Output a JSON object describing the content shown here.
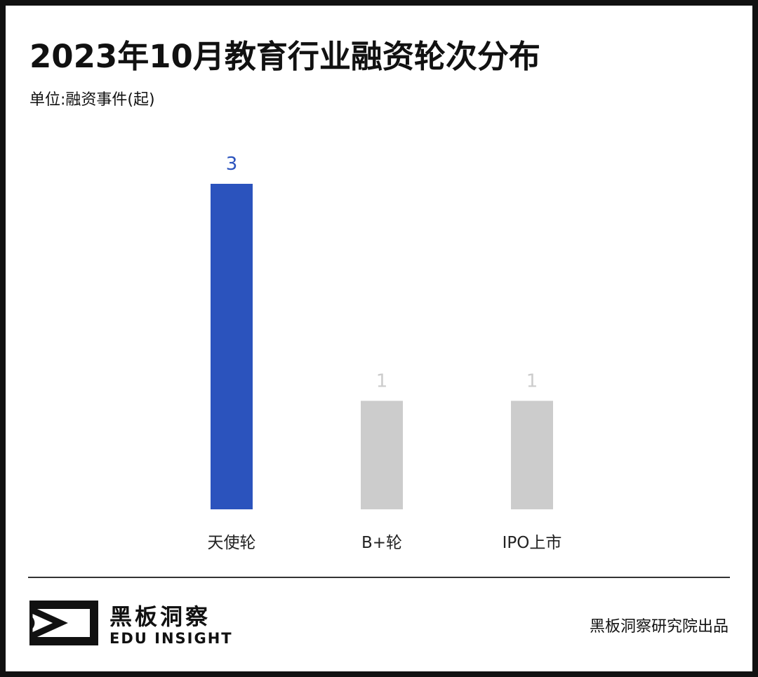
{
  "header": {
    "title": "2023年10月教育行业融资轮次分布",
    "unit": "单位:融资事件(起)"
  },
  "footer": {
    "brand_cn": "黑板洞察",
    "brand_en": "EDU INSIGHT",
    "credit": "黑板洞察研究院出品",
    "logo_icon": "eye-play-logo-icon"
  },
  "colors": {
    "highlight": "#2b53bd",
    "muted": "#cccccc",
    "label": "#222222"
  },
  "chart_data": {
    "type": "bar",
    "title": "2023年10月教育行业融资轮次分布",
    "ylabel": "单位:融资事件(起)",
    "xlabel": "",
    "categories": [
      "天使轮",
      "B+轮",
      "IPO上市"
    ],
    "values": [
      3,
      1,
      1
    ],
    "highlight": [
      true,
      false,
      false
    ],
    "ylim": [
      0,
      3
    ],
    "grid": false,
    "legend": "none"
  }
}
